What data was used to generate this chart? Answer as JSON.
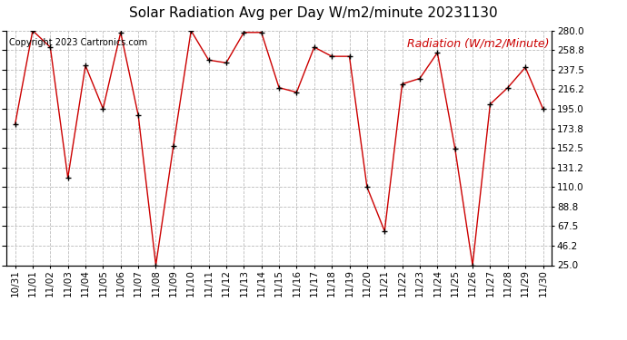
{
  "title": "Solar Radiation Avg per Day W/m2/minute 20231130",
  "copyright_text": "Copyright 2023 Cartronics.com",
  "legend_label": "Radiation (W/m2/Minute)",
  "dates": [
    "10/31",
    "11/01",
    "11/02",
    "11/03",
    "11/04",
    "11/05",
    "11/06",
    "11/07",
    "11/08",
    "11/09",
    "11/10",
    "11/11",
    "11/12",
    "11/13",
    "11/14",
    "11/15",
    "11/16",
    "11/17",
    "11/18",
    "11/19",
    "11/20",
    "11/21",
    "11/22",
    "11/23",
    "11/24",
    "11/25",
    "11/26",
    "11/27",
    "11/28",
    "11/29",
    "11/30"
  ],
  "values": [
    178,
    280,
    262,
    120,
    242,
    195,
    278,
    188,
    25,
    155,
    280,
    248,
    245,
    278,
    278,
    218,
    213,
    262,
    252,
    252,
    110,
    62,
    222,
    228,
    256,
    152,
    25,
    200,
    218,
    240,
    195
  ],
  "line_color": "#cc0000",
  "marker_color": "black",
  "background_color": "#ffffff",
  "grid_color": "#bbbbbb",
  "ylim_min": 25.0,
  "ylim_max": 280.0,
  "ytick_values": [
    25.0,
    46.2,
    67.5,
    88.8,
    110.0,
    131.2,
    152.5,
    173.8,
    195.0,
    216.2,
    237.5,
    258.8,
    280.0
  ],
  "title_fontsize": 11,
  "copyright_fontsize": 7,
  "legend_fontsize": 9,
  "tick_fontsize": 7.5
}
